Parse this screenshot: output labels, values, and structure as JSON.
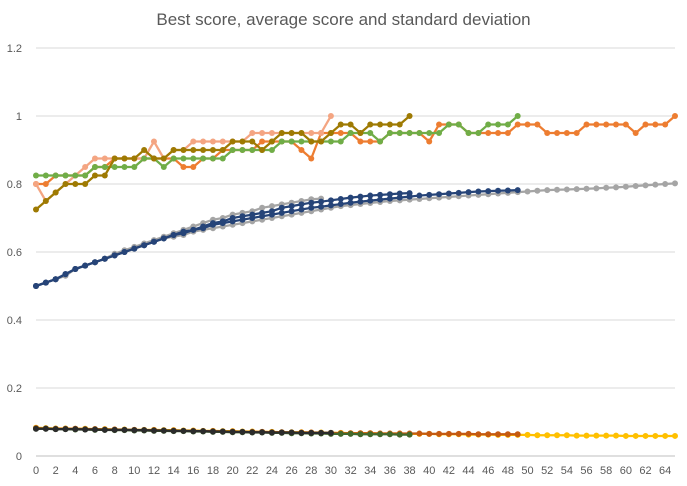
{
  "chart_data": {
    "type": "line",
    "title": "Best score, average score and standard deviation",
    "xlabel": "",
    "ylabel": "",
    "xlim": [
      0,
      65
    ],
    "ylim": [
      0,
      1.2
    ],
    "yticks": [
      0,
      0.2,
      0.4,
      0.6,
      0.8,
      1,
      1.2
    ],
    "ytick_labels": [
      "0",
      "0.2",
      "0.4",
      "0.6",
      "0.8",
      "1",
      "1.2"
    ],
    "xticks": [
      0,
      2,
      4,
      6,
      8,
      10,
      12,
      14,
      16,
      18,
      20,
      22,
      24,
      26,
      28,
      30,
      32,
      34,
      36,
      38,
      40,
      42,
      44,
      46,
      48,
      50,
      52,
      54,
      56,
      58,
      60,
      62,
      64
    ],
    "xtick_labels": [
      "0",
      "2",
      "4",
      "6",
      "8",
      "10",
      "12",
      "14",
      "16",
      "18",
      "20",
      "22",
      "24",
      "26",
      "28",
      "30",
      "32",
      "34",
      "36",
      "38",
      "40",
      "42",
      "44",
      "46",
      "48",
      "50",
      "52",
      "54",
      "56",
      "58",
      "60",
      "62",
      "64"
    ],
    "grid": "horizontal",
    "legend": "none",
    "series": [
      {
        "color": "#a5a5a5",
        "role": "average",
        "values": [
          0.5,
          0.51,
          0.52,
          0.53,
          0.55,
          0.56,
          0.57,
          0.58,
          0.59,
          0.6,
          0.61,
          0.62,
          0.63,
          0.64,
          0.645,
          0.65,
          0.66,
          0.665,
          0.67,
          0.675,
          0.68,
          0.685,
          0.69,
          0.695,
          0.7,
          0.705,
          0.71,
          0.715,
          0.72,
          0.725,
          0.73,
          0.735,
          0.738,
          0.741,
          0.744,
          0.747,
          0.75,
          0.752,
          0.754,
          0.756,
          0.758,
          0.76,
          0.762,
          0.764,
          0.766,
          0.768,
          0.77,
          0.772,
          0.774,
          0.776,
          0.778,
          0.78,
          0.782,
          0.783,
          0.784,
          0.785,
          0.786,
          0.787,
          0.789,
          0.79,
          0.792,
          0.794,
          0.796,
          0.798,
          0.8,
          0.802
        ]
      },
      {
        "color": "#a5a5a5",
        "role": "average",
        "values": [
          0.5,
          0.51,
          0.52,
          0.535,
          0.55,
          0.56,
          0.57,
          0.58,
          0.595,
          0.605,
          0.615,
          0.625,
          0.635,
          0.645,
          0.655,
          0.665,
          0.675,
          0.685,
          0.695,
          0.7,
          0.71,
          0.715,
          0.72,
          0.73,
          0.735,
          0.74,
          0.745,
          0.75,
          0.755,
          0.757
        ]
      },
      {
        "color": "#264478",
        "role": "average",
        "values": [
          0.5,
          0.51,
          0.52,
          0.535,
          0.55,
          0.56,
          0.57,
          0.58,
          0.59,
          0.6,
          0.61,
          0.62,
          0.63,
          0.64,
          0.65,
          0.66,
          0.665,
          0.67,
          0.68,
          0.685,
          0.69,
          0.695,
          0.7,
          0.705,
          0.71,
          0.715,
          0.72,
          0.725,
          0.73,
          0.733,
          0.737,
          0.741,
          0.745,
          0.748,
          0.751,
          0.754,
          0.757,
          0.76,
          0.763,
          0.766,
          0.768,
          0.77,
          0.772,
          0.774,
          0.776,
          0.778,
          0.779,
          0.78,
          0.781,
          0.782
        ]
      },
      {
        "color": "#264478",
        "role": "average",
        "values": [
          0.5,
          0.51,
          0.52,
          0.535,
          0.55,
          0.56,
          0.57,
          0.58,
          0.59,
          0.6,
          0.61,
          0.62,
          0.63,
          0.64,
          0.65,
          0.655,
          0.665,
          0.675,
          0.685,
          0.69,
          0.7,
          0.705,
          0.71,
          0.715,
          0.72,
          0.73,
          0.735,
          0.74,
          0.745,
          0.748,
          0.752,
          0.756,
          0.76,
          0.763,
          0.766,
          0.768,
          0.77,
          0.772,
          0.773
        ]
      },
      {
        "color": "#ed7d31",
        "role": "best",
        "values": [
          0.8,
          0.8,
          0.825,
          0.825,
          0.825,
          0.825,
          0.85,
          0.85,
          0.875,
          0.875,
          0.875,
          0.875,
          0.875,
          0.875,
          0.875,
          0.85,
          0.85,
          0.875,
          0.875,
          0.9,
          0.9,
          0.9,
          0.9,
          0.925,
          0.925,
          0.925,
          0.925,
          0.9,
          0.875,
          0.95,
          0.95,
          0.95,
          0.95,
          0.925,
          0.925,
          0.925,
          0.95,
          0.95,
          0.95,
          0.95,
          0.925,
          0.975,
          0.975,
          0.975,
          0.95,
          0.95,
          0.95,
          0.95,
          0.95,
          0.975,
          0.975,
          0.975,
          0.95,
          0.95,
          0.95,
          0.95,
          0.975,
          0.975,
          0.975,
          0.975,
          0.975,
          0.95,
          0.975,
          0.975,
          0.975,
          1
        ]
      },
      {
        "color": "#f4a582",
        "role": "best",
        "values": [
          0.8,
          0.75,
          0.775,
          0.8,
          0.825,
          0.85,
          0.875,
          0.875,
          0.875,
          0.875,
          0.875,
          0.875,
          0.925,
          0.875,
          0.9,
          0.9,
          0.925,
          0.925,
          0.925,
          0.925,
          0.925,
          0.925,
          0.95,
          0.95,
          0.95,
          0.95,
          0.95,
          0.95,
          0.95,
          0.95,
          1
        ]
      },
      {
        "color": "#70ad47",
        "role": "best",
        "values": [
          0.825,
          0.825,
          0.825,
          0.825,
          0.825,
          0.825,
          0.85,
          0.85,
          0.85,
          0.85,
          0.85,
          0.875,
          0.875,
          0.85,
          0.875,
          0.875,
          0.875,
          0.875,
          0.875,
          0.875,
          0.9,
          0.9,
          0.9,
          0.9,
          0.9,
          0.925,
          0.925,
          0.925,
          0.925,
          0.925,
          0.925,
          0.925,
          0.95,
          0.95,
          0.95,
          0.925,
          0.95,
          0.95,
          0.95,
          0.95,
          0.95,
          0.95,
          0.975,
          0.975,
          0.95,
          0.95,
          0.975,
          0.975,
          0.975,
          1
        ]
      },
      {
        "color": "#9e7a03",
        "role": "best",
        "values": [
          0.725,
          0.75,
          0.775,
          0.8,
          0.8,
          0.8,
          0.825,
          0.825,
          0.875,
          0.875,
          0.875,
          0.9,
          0.875,
          0.875,
          0.9,
          0.9,
          0.9,
          0.9,
          0.9,
          0.9,
          0.925,
          0.925,
          0.925,
          0.9,
          0.925,
          0.95,
          0.95,
          0.95,
          0.925,
          0.925,
          0.95,
          0.975,
          0.975,
          0.95,
          0.975,
          0.975,
          0.975,
          0.975,
          1
        ]
      },
      {
        "color": "#ffc000",
        "role": "std",
        "values": [
          0.083,
          0.082,
          0.081,
          0.081,
          0.08,
          0.08,
          0.079,
          0.079,
          0.078,
          0.078,
          0.077,
          0.077,
          0.077,
          0.076,
          0.076,
          0.075,
          0.075,
          0.074,
          0.074,
          0.073,
          0.073,
          0.072,
          0.072,
          0.071,
          0.071,
          0.07,
          0.07,
          0.07,
          0.069,
          0.069,
          0.068,
          0.068,
          0.067,
          0.067,
          0.067,
          0.066,
          0.066,
          0.066,
          0.065,
          0.065,
          0.065,
          0.064,
          0.064,
          0.064,
          0.063,
          0.063,
          0.063,
          0.062,
          0.062,
          0.062,
          0.062,
          0.061,
          0.061,
          0.061,
          0.061,
          0.06,
          0.06,
          0.06,
          0.06,
          0.06,
          0.059,
          0.059,
          0.059,
          0.059,
          0.059,
          0.059
        ]
      },
      {
        "color": "#c55a11",
        "role": "std",
        "values": [
          0.082,
          0.081,
          0.08,
          0.08,
          0.08,
          0.079,
          0.079,
          0.078,
          0.078,
          0.077,
          0.077,
          0.076,
          0.076,
          0.075,
          0.075,
          0.074,
          0.074,
          0.073,
          0.073,
          0.072,
          0.072,
          0.071,
          0.071,
          0.071,
          0.07,
          0.07,
          0.069,
          0.069,
          0.069,
          0.068,
          0.068,
          0.067,
          0.067,
          0.067,
          0.067,
          0.066,
          0.066,
          0.066,
          0.066,
          0.066,
          0.065,
          0.065,
          0.065,
          0.065,
          0.065,
          0.064,
          0.064,
          0.064,
          0.064,
          0.064
        ]
      },
      {
        "color": "#43682b",
        "role": "std",
        "values": [
          0.08,
          0.08,
          0.079,
          0.079,
          0.078,
          0.078,
          0.077,
          0.077,
          0.076,
          0.076,
          0.075,
          0.075,
          0.074,
          0.074,
          0.073,
          0.073,
          0.072,
          0.072,
          0.071,
          0.071,
          0.07,
          0.07,
          0.069,
          0.069,
          0.068,
          0.068,
          0.067,
          0.067,
          0.066,
          0.066,
          0.065,
          0.065,
          0.065,
          0.064,
          0.064,
          0.064,
          0.064,
          0.063,
          0.063
        ]
      },
      {
        "color": "#2b2b2b",
        "role": "std",
        "values": [
          0.08,
          0.08,
          0.079,
          0.079,
          0.079,
          0.078,
          0.078,
          0.077,
          0.077,
          0.077,
          0.076,
          0.076,
          0.075,
          0.075,
          0.074,
          0.074,
          0.073,
          0.073,
          0.072,
          0.072,
          0.071,
          0.071,
          0.07,
          0.07,
          0.069,
          0.069,
          0.069,
          0.068,
          0.068,
          0.068,
          0.068
        ]
      }
    ]
  }
}
